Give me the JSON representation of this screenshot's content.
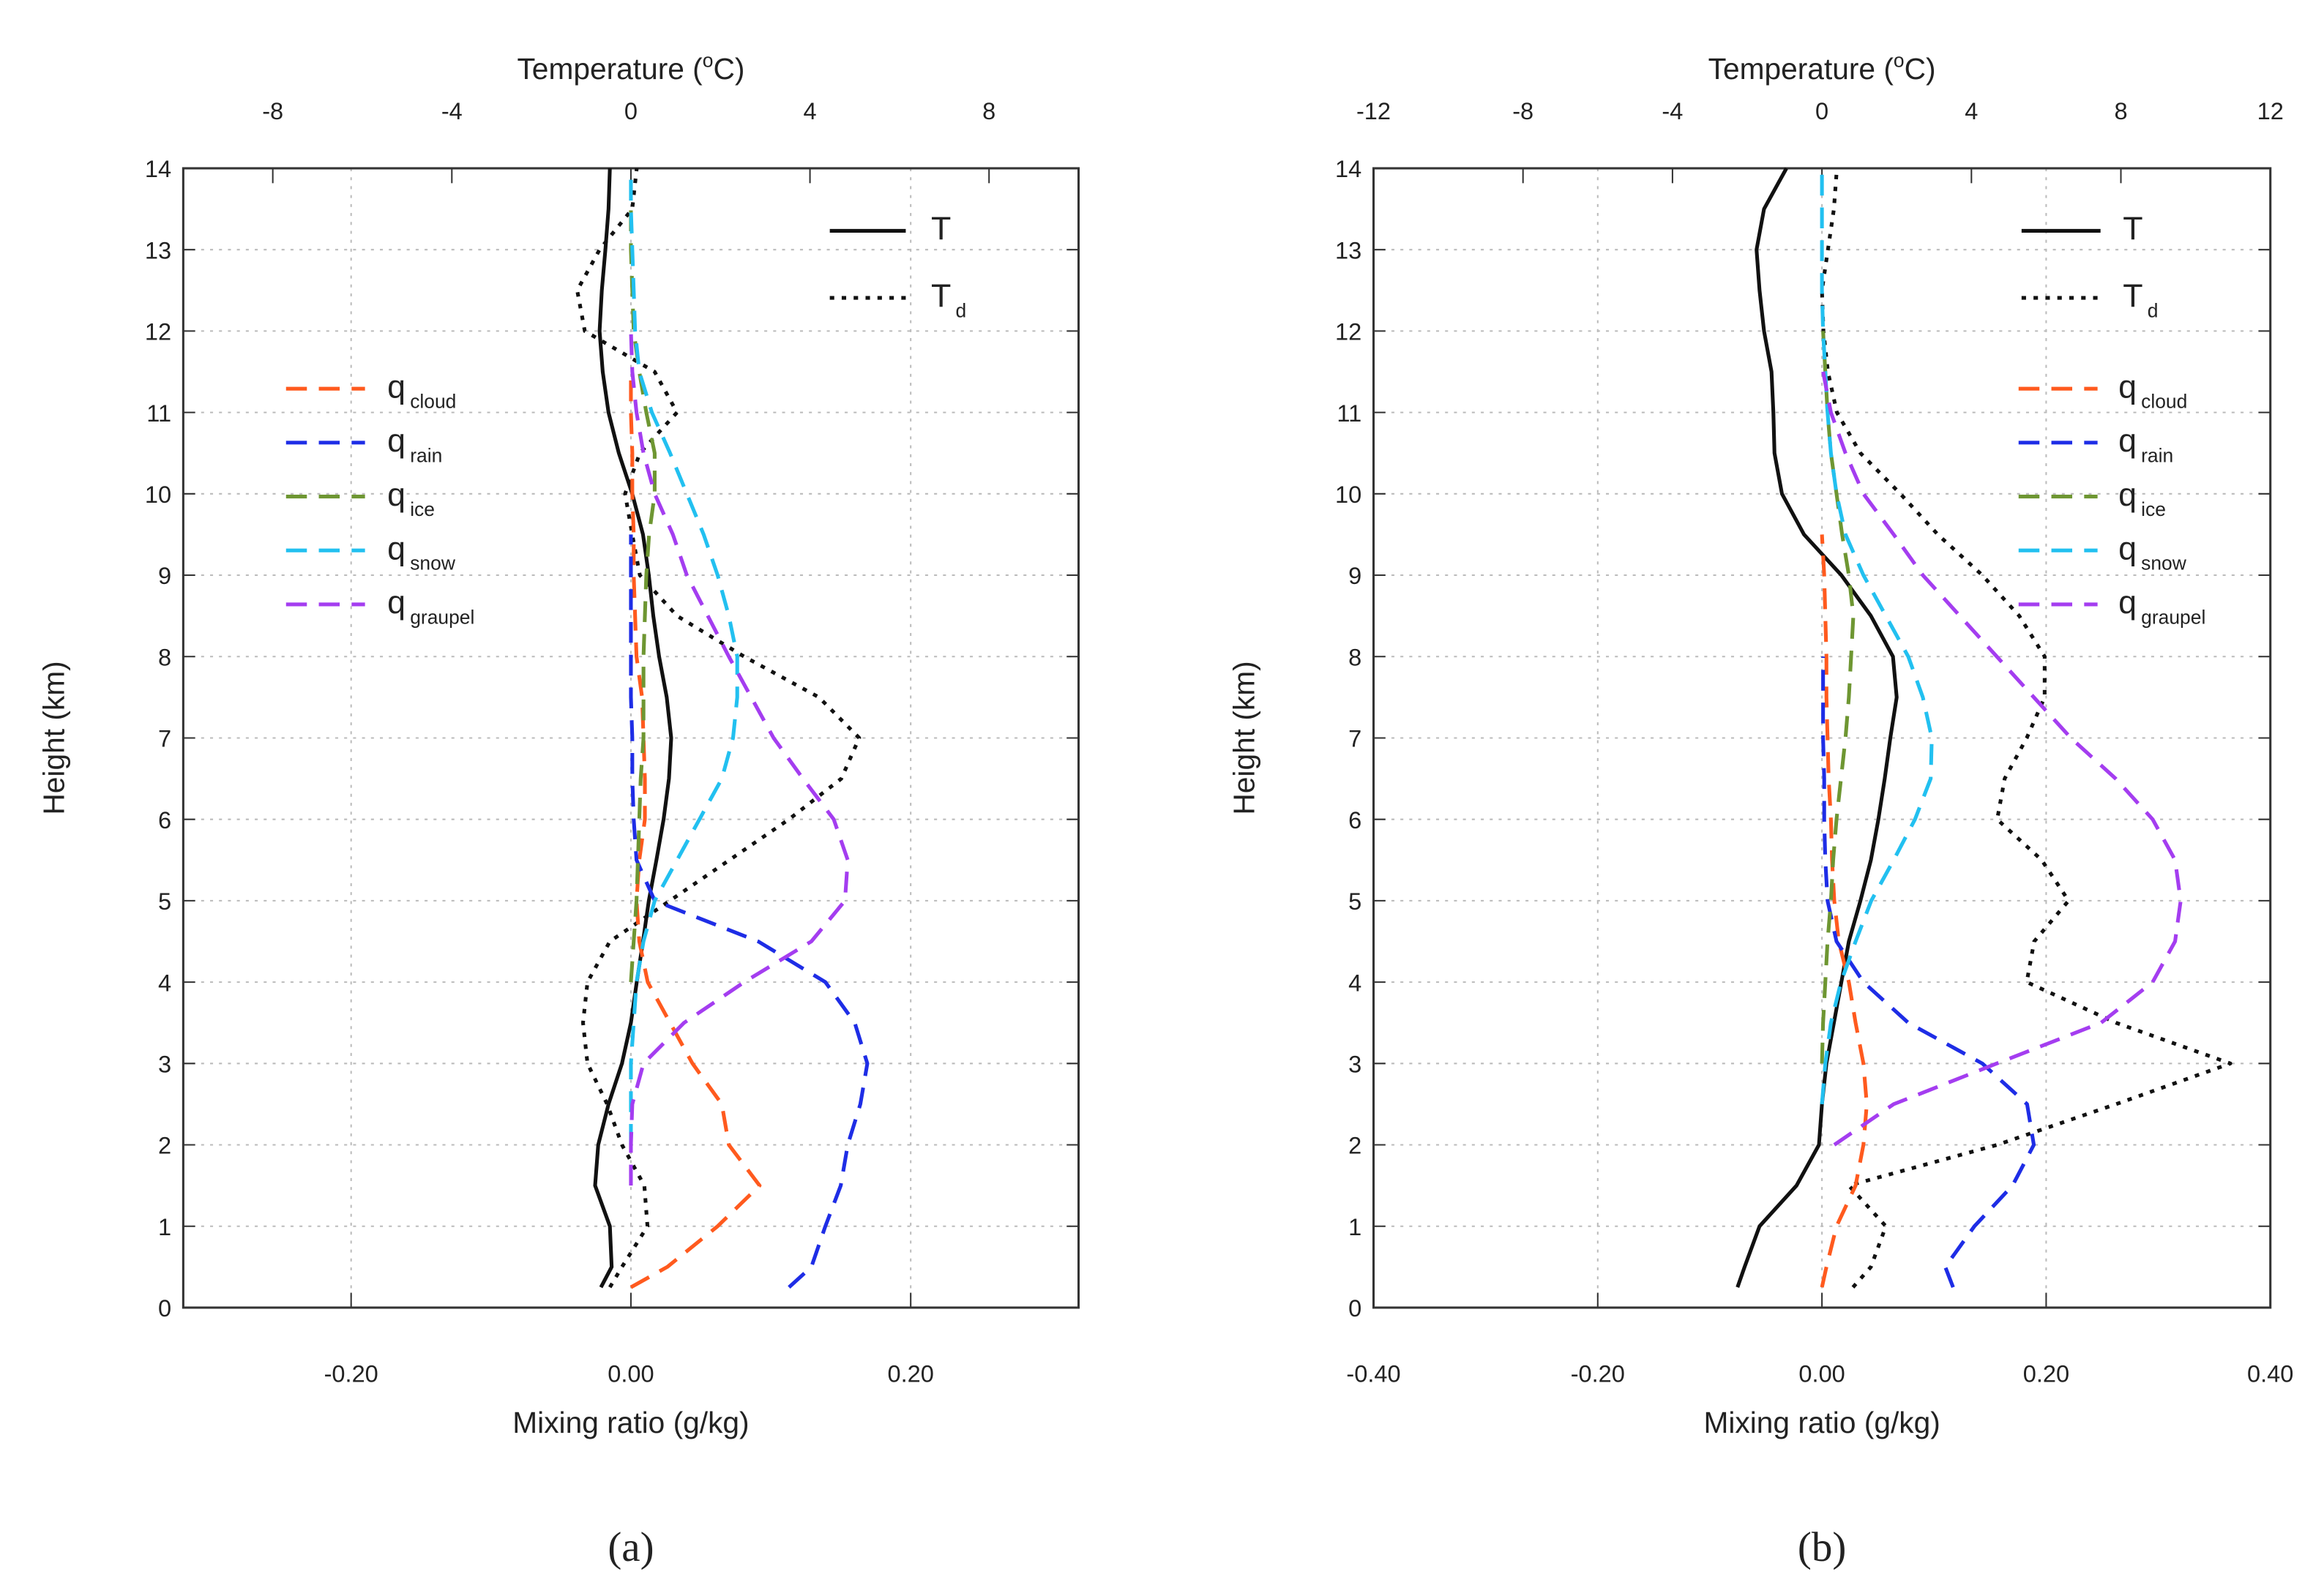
{
  "chart_data": [
    {
      "type": "line",
      "panel_label": "(a)",
      "ylabel": "Height (km)",
      "xlabel": "Mixing ratio (g/kg)",
      "x2label": [
        "Temperature (",
        "o",
        "C)"
      ],
      "xlim": [
        -0.32,
        0.32
      ],
      "xticks": [
        {
          "value": -0.2,
          "label": "-0.20"
        },
        {
          "value": 0,
          "label": "0.00"
        },
        {
          "value": 0.2,
          "label": "0.20"
        }
      ],
      "x2lim": [
        -10,
        10
      ],
      "x2ticks": [
        -8,
        -4,
        0,
        4,
        8
      ],
      "ylim": [
        0,
        14
      ],
      "yticks": [
        0,
        1,
        2,
        3,
        4,
        5,
        6,
        7,
        8,
        9,
        10,
        11,
        12,
        13,
        14
      ],
      "grid": true,
      "y": [
        0.25,
        0.5,
        1,
        1.5,
        2,
        2.5,
        3,
        3.5,
        4,
        4.5,
        5,
        5.5,
        6,
        6.5,
        7,
        7.5,
        8,
        8.5,
        9,
        9.5,
        10,
        10.5,
        11,
        11.5,
        12,
        12.5,
        13,
        13.5,
        14
      ],
      "series": [
        {
          "name": "T",
          "axis": "x2",
          "color": "#111111",
          "dash": "solid",
          "values": [
            -0.67,
            -0.43,
            -0.47,
            -0.8,
            -0.73,
            -0.5,
            -0.2,
            0.0,
            0.13,
            0.27,
            0.4,
            0.57,
            0.73,
            0.85,
            0.9,
            0.8,
            0.63,
            0.5,
            0.4,
            0.27,
            0.03,
            -0.27,
            -0.5,
            -0.63,
            -0.7,
            -0.65,
            -0.57,
            -0.5,
            -0.47
          ]
        },
        {
          "name": "T",
          "name_sub": "d",
          "axis": "x2",
          "color": "#111111",
          "dash": "dotted",
          "values": [
            -0.47,
            -0.2,
            0.37,
            0.3,
            -0.2,
            -0.53,
            -0.97,
            -1.07,
            -0.97,
            -0.47,
            0.87,
            2.2,
            3.53,
            4.7,
            5.1,
            4.2,
            2.53,
            1.03,
            0.2,
            0.03,
            -0.13,
            0.2,
            1.03,
            0.53,
            -1.03,
            -1.2,
            -0.7,
            0.03,
            0.13
          ]
        },
        {
          "name": "q",
          "name_sub": "cloud",
          "color": "#ff5a1e",
          "dash": "dashed",
          "values": [
            0.0,
            0.026,
            0.062,
            0.092,
            0.07,
            0.065,
            0.044,
            0.028,
            0.012,
            0.006,
            0.004,
            0.006,
            0.01,
            0.01,
            0.009,
            0.008,
            0.004,
            0.003,
            0.002,
            0.002,
            0.001,
            0.001,
            0.0,
            0.0,
            null,
            null,
            null,
            null,
            null
          ]
        },
        {
          "name": "q",
          "name_sub": "rain",
          "color": "#1e2de6",
          "dash": "dashed",
          "values": [
            0.113,
            0.129,
            0.139,
            0.15,
            0.155,
            0.164,
            0.169,
            0.16,
            0.139,
            0.091,
            0.017,
            0.004,
            0.002,
            0.001,
            0.001,
            0.0,
            0.0,
            0.0,
            0.0,
            0.0,
            null,
            null,
            null,
            null,
            null,
            null,
            null,
            null,
            null
          ]
        },
        {
          "name": "q",
          "name_sub": "ice",
          "color": "#6e9632",
          "dash": "dashed",
          "values": [
            null,
            null,
            null,
            null,
            null,
            null,
            null,
            null,
            0.0,
            0.002,
            0.004,
            0.005,
            0.006,
            0.007,
            0.009,
            0.009,
            0.009,
            0.01,
            0.011,
            0.013,
            0.017,
            0.017,
            0.011,
            0.006,
            0.002,
            0.001,
            0.0,
            0.0,
            null
          ]
        },
        {
          "name": "q",
          "name_sub": "snow",
          "color": "#22c0f0",
          "dash": "dashed",
          "values": [
            null,
            null,
            null,
            null,
            0.0,
            0.0,
            0.0,
            0.002,
            0.004,
            0.009,
            0.017,
            0.033,
            0.049,
            0.065,
            0.073,
            0.076,
            0.076,
            0.07,
            0.062,
            0.052,
            0.04,
            0.028,
            0.015,
            0.006,
            0.003,
            0.002,
            0.001,
            0.0,
            0.0
          ]
        },
        {
          "name": "q",
          "name_sub": "graupel",
          "color": "#a43df0",
          "dash": "dashed",
          "values": [
            null,
            null,
            null,
            0.0,
            0.0,
            0.001,
            0.009,
            0.038,
            0.081,
            0.129,
            0.153,
            0.155,
            0.145,
            0.123,
            0.102,
            0.086,
            0.07,
            0.055,
            0.04,
            0.03,
            0.017,
            0.009,
            0.004,
            0.001,
            0.0,
            null,
            null,
            null,
            null
          ]
        }
      ]
    },
    {
      "type": "line",
      "panel_label": "(b)",
      "ylabel": "Height (km)",
      "xlabel": "Mixing ratio (g/kg)",
      "x2label": [
        "Temperature (",
        "o",
        "C)"
      ],
      "xlim": [
        -0.4,
        0.4
      ],
      "xticks": [
        {
          "value": -0.4,
          "label": "-0.40"
        },
        {
          "value": -0.2,
          "label": "-0.20"
        },
        {
          "value": 0,
          "label": "0.00"
        },
        {
          "value": 0.2,
          "label": "0.20"
        },
        {
          "value": 0.4,
          "label": "0.40"
        }
      ],
      "x2lim": [
        -12,
        12
      ],
      "x2ticks": [
        -12,
        -8,
        -4,
        0,
        4,
        8,
        12
      ],
      "ylim": [
        0,
        14
      ],
      "yticks": [
        0,
        1,
        2,
        3,
        4,
        5,
        6,
        7,
        8,
        9,
        10,
        11,
        12,
        13,
        14
      ],
      "grid": true,
      "y": [
        0.25,
        0.5,
        1,
        1.5,
        2,
        2.5,
        3,
        3.5,
        4,
        4.5,
        5,
        5.5,
        6,
        6.5,
        7,
        7.5,
        8,
        8.5,
        9,
        9.5,
        10,
        10.5,
        11,
        11.5,
        12,
        12.5,
        13,
        13.5,
        14
      ],
      "series": [
        {
          "name": "T",
          "axis": "x2",
          "color": "#111111",
          "dash": "solid",
          "values": [
            -2.26,
            -2.07,
            -1.67,
            -0.68,
            -0.08,
            0.0,
            0.12,
            0.32,
            0.52,
            0.72,
            1.03,
            1.31,
            1.51,
            1.68,
            1.83,
            2.0,
            1.9,
            1.31,
            0.52,
            -0.48,
            -1.07,
            -1.27,
            -1.3,
            -1.35,
            -1.55,
            -1.67,
            -1.75,
            -1.55,
            -0.95
          ]
        },
        {
          "name": "T",
          "name_sub": "d",
          "axis": "x2",
          "color": "#111111",
          "dash": "dotted",
          "values": [
            0.83,
            1.31,
            1.71,
            0.72,
            4.69,
            7.87,
            10.93,
            7.87,
            5.48,
            5.68,
            6.6,
            5.88,
            4.69,
            4.89,
            5.48,
            5.96,
            5.96,
            5.28,
            4.29,
            3.1,
            2.1,
            1.03,
            0.4,
            0.16,
            0.04,
            0.0,
            0.16,
            0.32,
            0.4
          ]
        },
        {
          "name": "q",
          "name_sub": "cloud",
          "color": "#ff5a1e",
          "dash": "dashed",
          "values": [
            0.0,
            0.004,
            0.013,
            0.03,
            0.037,
            0.04,
            0.037,
            0.03,
            0.024,
            0.015,
            0.011,
            0.009,
            0.008,
            0.006,
            0.005,
            0.004,
            0.004,
            0.003,
            0.002,
            0.0,
            null,
            null,
            null,
            null,
            null,
            null,
            null,
            null,
            null
          ]
        },
        {
          "name": "q",
          "name_sub": "rain",
          "color": "#1e2de6",
          "dash": "dashed",
          "values": [
            0.117,
            0.11,
            0.136,
            0.17,
            0.189,
            0.183,
            0.143,
            0.077,
            0.037,
            0.013,
            0.005,
            0.003,
            0.002,
            0.002,
            0.001,
            0.001,
            0.001,
            null,
            null,
            null,
            null,
            null,
            null,
            null,
            null,
            null,
            null,
            null,
            null
          ]
        },
        {
          "name": "q",
          "name_sub": "ice",
          "color": "#6e9632",
          "dash": "dashed",
          "values": [
            null,
            null,
            null,
            null,
            null,
            null,
            0.0,
            0.001,
            0.003,
            0.005,
            0.008,
            0.01,
            0.013,
            0.017,
            0.021,
            0.024,
            0.026,
            0.028,
            0.024,
            0.018,
            0.013,
            0.008,
            0.005,
            0.003,
            0.001,
            null,
            null,
            null,
            null
          ]
        },
        {
          "name": "q",
          "name_sub": "snow",
          "color": "#22c0f0",
          "dash": "dashed",
          "values": [
            null,
            null,
            null,
            null,
            null,
            0.0,
            0.003,
            0.008,
            0.017,
            0.03,
            0.044,
            0.064,
            0.083,
            0.097,
            0.098,
            0.09,
            0.077,
            0.057,
            0.037,
            0.021,
            0.013,
            0.008,
            0.005,
            0.003,
            0.001,
            0.0,
            0.0,
            0.0,
            0.0
          ]
        },
        {
          "name": "q",
          "name_sub": "graupel",
          "color": "#a43df0",
          "dash": "dashed",
          "values": [
            null,
            null,
            null,
            null,
            0.011,
            0.064,
            0.156,
            0.249,
            0.295,
            0.315,
            0.32,
            0.315,
            0.295,
            0.262,
            0.222,
            0.189,
            0.156,
            0.123,
            0.09,
            0.064,
            0.037,
            0.021,
            0.008,
            0.001,
            null,
            null,
            null,
            null,
            null
          ]
        }
      ]
    }
  ]
}
